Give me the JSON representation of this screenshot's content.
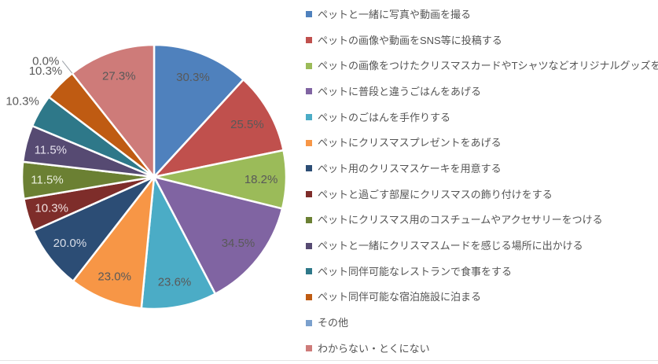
{
  "chart_data": {
    "type": "pie",
    "title": "",
    "legend_position": "right",
    "start_angle_deg": 0,
    "direction": "clockwise",
    "percent_suffix": "%",
    "values_are_percent_of_respondents": true,
    "slices": [
      {
        "label": "ペットと一緒に写真や動画を撮る",
        "value": 30.3,
        "display": "30.3%",
        "color": "#4F81BD",
        "label_color": "#595959",
        "label_placement": "inside"
      },
      {
        "label": "ペットの画像や動画をSNS等に投稿する",
        "value": 25.5,
        "display": "25.5%",
        "color": "#C0504D",
        "label_color": "#595959",
        "label_placement": "inside"
      },
      {
        "label": "ペットの画像をつけたクリスマスカードやTシャツなどオリジナルグッズを作る",
        "value": 18.2,
        "display": "18.2%",
        "color": "#9BBB59",
        "label_color": "#595959",
        "label_placement": "inside"
      },
      {
        "label": "ペットに普段と違うごはんをあげる",
        "value": 34.5,
        "display": "34.5%",
        "color": "#8064A2",
        "label_color": "#595959",
        "label_placement": "inside"
      },
      {
        "label": "ペットのごはんを手作りする",
        "value": 23.6,
        "display": "23.6%",
        "color": "#4BACC6",
        "label_color": "#595959",
        "label_placement": "inside"
      },
      {
        "label": "ペットにクリスマスプレゼントをあげる",
        "value": 23.0,
        "display": "23.0%",
        "color": "#F79646",
        "label_color": "#595959",
        "label_placement": "inside"
      },
      {
        "label": "ペット用のクリスマスケーキを用意する",
        "value": 20.0,
        "display": "20.0%",
        "color": "#2C4D75",
        "label_color": "#D9DEE8",
        "label_placement": "inside"
      },
      {
        "label": "ペットと過ごす部屋にクリスマスの飾り付けをする",
        "value": 10.3,
        "display": "10.3%",
        "color": "#7E2D2A",
        "label_color": "#EFE0DF",
        "label_placement": "inside"
      },
      {
        "label": "ペットにクリスマス用のコスチュームやアクセサリーをつける",
        "value": 11.5,
        "display": "11.5%",
        "color": "#6B8033",
        "label_color": "#EBEFDE",
        "label_placement": "inside"
      },
      {
        "label": "ペットと一緒にクリスマスムードを感じる場所に出かける",
        "value": 11.5,
        "display": "11.5%",
        "color": "#564A72",
        "label_color": "#E6E1EE",
        "label_placement": "inside"
      },
      {
        "label": "ペット同伴可能なレストランで食事をする",
        "value": 10.3,
        "display": "10.3%",
        "color": "#2E7889",
        "label_color": "#595959",
        "label_placement": "outside"
      },
      {
        "label": "ペット同伴可能な宿泊施設に泊まる",
        "value": 10.3,
        "display": "10.3%",
        "color": "#BF5B12",
        "label_color": "#595959",
        "label_placement": "outside"
      },
      {
        "label": "その他",
        "value": 0.0,
        "display": "0.0%",
        "color": "#7BA0CD",
        "label_color": "#595959",
        "label_placement": "callout"
      },
      {
        "label": "わからない・とくにない",
        "value": 27.3,
        "display": "27.3%",
        "color": "#CE7B79",
        "label_color": "#595959",
        "label_placement": "inside"
      }
    ]
  }
}
